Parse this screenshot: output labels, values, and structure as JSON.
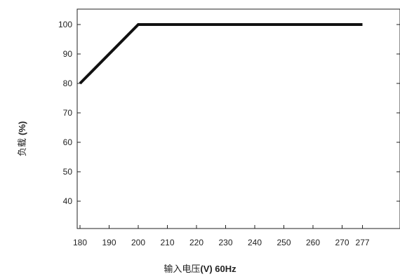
{
  "chart_data": {
    "type": "line",
    "xlabel": "输入电压(V) 60Hz",
    "ylabel": "负载 (%)",
    "x_ticks": [
      "180",
      "190",
      "200",
      "210",
      "220",
      "230",
      "240",
      "250",
      "260",
      "270",
      "277"
    ],
    "y_ticks": [
      "40",
      "50",
      "60",
      "70",
      "80",
      "90",
      "100"
    ],
    "xlim": [
      180,
      280
    ],
    "ylim": [
      30,
      105
    ],
    "grid": false,
    "series": [
      {
        "x": [
          180,
          200,
          277
        ],
        "y": [
          80,
          100,
          100
        ]
      }
    ],
    "xlabel_parts": {
      "text": "输入电压",
      "bold": "(V) 60Hz"
    },
    "ylabel_parts": {
      "text": "负载 ",
      "bold": "(%)"
    }
  }
}
